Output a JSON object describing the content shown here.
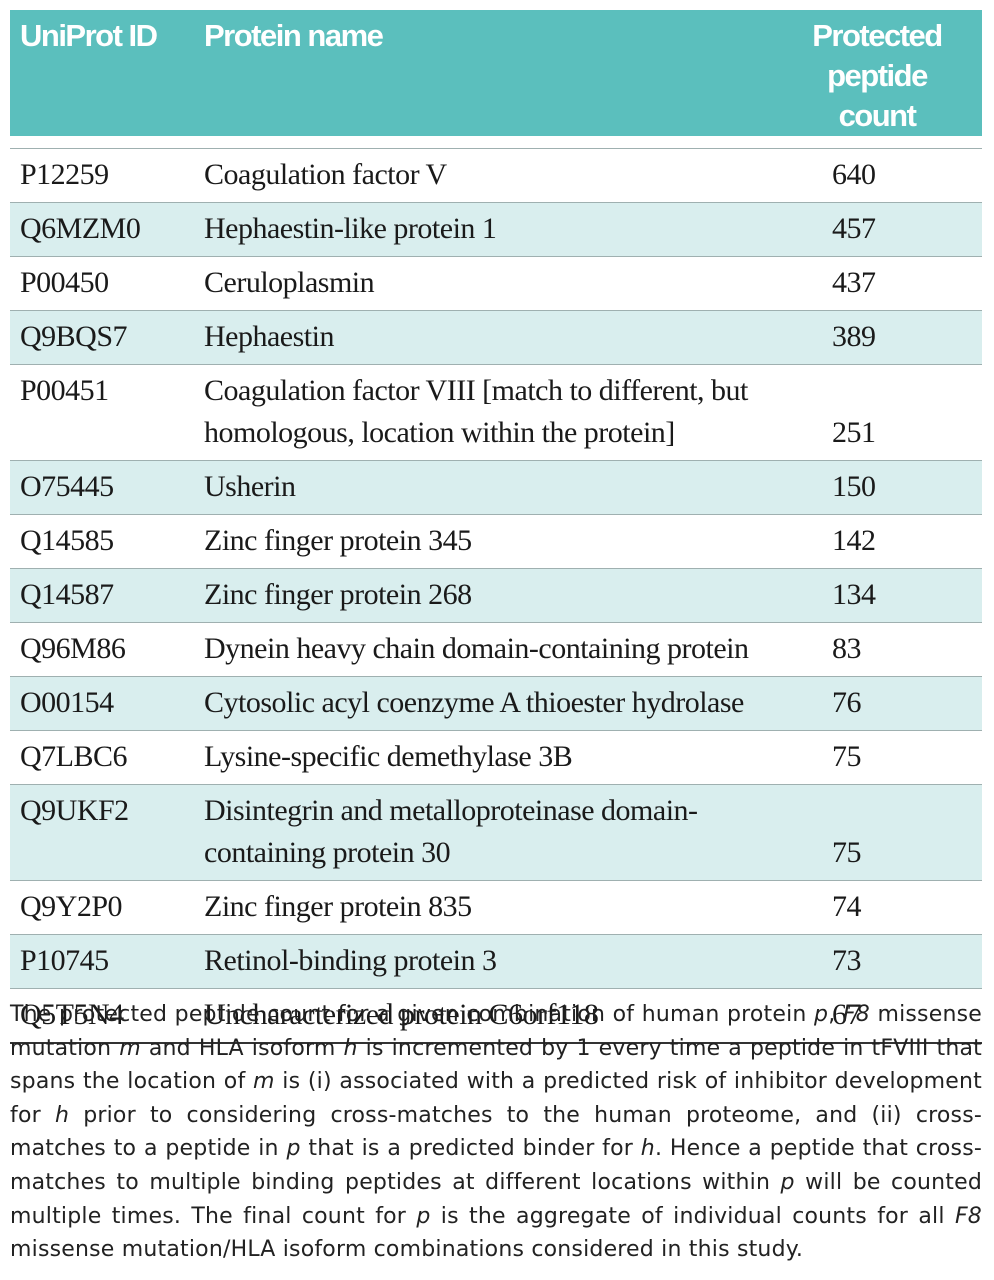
{
  "table": {
    "headers": [
      "UniProt ID",
      "Protein name",
      "Protected peptide count"
    ],
    "rows": [
      {
        "id": "P12259",
        "name": "Coagulation factor V",
        "count": "640"
      },
      {
        "id": "Q6MZM0",
        "name": "Hephaestin-like protein 1",
        "count": "457"
      },
      {
        "id": "P00450",
        "name": "Ceruloplasmin",
        "count": "437"
      },
      {
        "id": "Q9BQS7",
        "name": "Hephaestin",
        "count": "389"
      },
      {
        "id": "P00451",
        "name": "Coagulation factor VIII [match to different, but homologous, location within the protein]",
        "count": "251"
      },
      {
        "id": "O75445",
        "name": "Usherin",
        "count": "150"
      },
      {
        "id": "Q14585",
        "name": "Zinc finger protein 345",
        "count": "142"
      },
      {
        "id": "Q14587",
        "name": "Zinc finger protein 268",
        "count": "134"
      },
      {
        "id": "Q96M86",
        "name": "Dynein heavy chain domain-containing protein",
        "count": "83"
      },
      {
        "id": "O00154",
        "name": "Cytosolic acyl coenzyme A thioester hydrolase",
        "count": "76"
      },
      {
        "id": "Q7LBC6",
        "name": "Lysine-specific demethylase 3B",
        "count": "75"
      },
      {
        "id": "Q9UKF2",
        "name": "Disintegrin and metalloproteinase domain-containing protein 30",
        "count": "75"
      },
      {
        "id": "Q9Y2P0",
        "name": "Zinc finger protein 835",
        "count": "74"
      },
      {
        "id": "P10745",
        "name": "Retinol-binding protein 3",
        "count": "73"
      },
      {
        "id": "Q5T5N4",
        "name": "Uncharacterized protein C6orf118",
        "count": "67"
      }
    ]
  },
  "footnote": {
    "s1": "The protected peptide count for a given combination of human protein ",
    "p": "p",
    "s2": ", ",
    "f8": "F8",
    "s3": " missense mutation ",
    "m": "m",
    "s4": " and HLA isoform ",
    "h": "h",
    "s5": " is incremented by 1 every time a peptide in tFVIII that spans the location of ",
    "s6": " is (i) associated with a predicted risk of inhibitor development for ",
    "s7": " prior to considering cross-matches to the human proteome, and (ii) cross-matches to a peptide in ",
    "s8": " that is a predicted binder for ",
    "s9": ". Hence a peptide that cross-matches to multiple binding peptides at different locations within ",
    "s10": " will be counted multiple times. The final count for ",
    "s11": " is the aggregate of individual counts for all ",
    "s12": " missense mutation/HLA isoform combinations considered in this study."
  }
}
